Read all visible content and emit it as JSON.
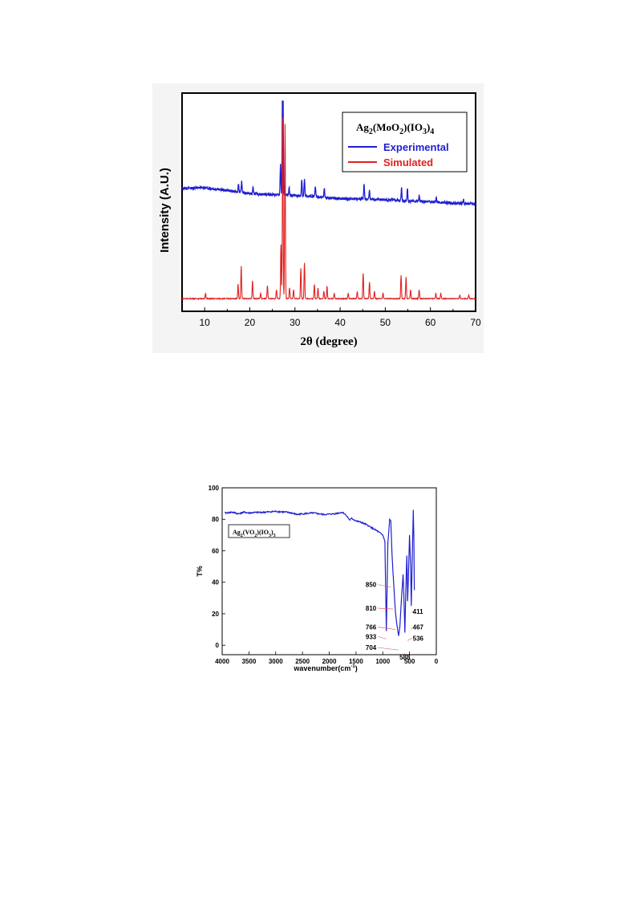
{
  "charts": [
    {
      "type": "line",
      "xlabel": "2θ (degree)",
      "ylabel": "Intensity (A.U.)",
      "x_ticks": [
        "10",
        "20",
        "30",
        "40",
        "50",
        "60",
        "70"
      ],
      "xlim": [
        5,
        70
      ],
      "legend": {
        "title": "Ag",
        "title_sub1": "2",
        "title_mid": "(MoO",
        "title_sub2": "2",
        "title_mid2": ")(IO",
        "title_sub3": "3",
        "title_end": ")",
        "title_sub4": "4",
        "placement": "top-right"
      },
      "series": [
        {
          "name": "Experimental",
          "color": "#1f1fd0",
          "baseline": [
            [
              5,
              0.585
            ],
            [
              10,
              0.588
            ],
            [
              15,
              0.575
            ],
            [
              20,
              0.56
            ],
            [
              25,
              0.555
            ],
            [
              30,
              0.55
            ],
            [
              35,
              0.545
            ],
            [
              40,
              0.535
            ],
            [
              45,
              0.535
            ],
            [
              50,
              0.53
            ],
            [
              55,
              0.525
            ],
            [
              60,
              0.52
            ],
            [
              65,
              0.515
            ],
            [
              70,
              0.51
            ]
          ],
          "peaks": [
            [
              17.5,
              0.04
            ],
            [
              18.2,
              0.05
            ],
            [
              20.7,
              0.03
            ],
            [
              26.8,
              0.15
            ],
            [
              27.3,
              1.0
            ],
            [
              28.7,
              0.04
            ],
            [
              31.5,
              0.08
            ],
            [
              32.1,
              0.08
            ],
            [
              34.5,
              0.05
            ],
            [
              36.5,
              0.04
            ],
            [
              45.3,
              0.07
            ],
            [
              46.5,
              0.04
            ],
            [
              53.6,
              0.06
            ],
            [
              54.9,
              0.06
            ],
            [
              57.5,
              0.03
            ],
            [
              61.3,
              0.02
            ],
            [
              67.3,
              0.02
            ]
          ]
        },
        {
          "name": "Simulated",
          "color": "#e02020",
          "baseline": [
            [
              5,
              0.07
            ],
            [
              70,
              0.07
            ]
          ],
          "peaks": [
            [
              10.2,
              0.03
            ],
            [
              17.4,
              0.08
            ],
            [
              18.1,
              0.18
            ],
            [
              20.6,
              0.1
            ],
            [
              22.4,
              0.03
            ],
            [
              23.9,
              0.07
            ],
            [
              25.9,
              0.05
            ],
            [
              26.9,
              0.3
            ],
            [
              27.3,
              1.0
            ],
            [
              27.8,
              0.97
            ],
            [
              28.8,
              0.06
            ],
            [
              29.7,
              0.05
            ],
            [
              31.3,
              0.17
            ],
            [
              32.1,
              0.2
            ],
            [
              34.3,
              0.08
            ],
            [
              35.1,
              0.06
            ],
            [
              36.4,
              0.04
            ],
            [
              37.1,
              0.07
            ],
            [
              38.7,
              0.03
            ],
            [
              41.8,
              0.03
            ],
            [
              43.8,
              0.04
            ],
            [
              45.1,
              0.14
            ],
            [
              46.5,
              0.09
            ],
            [
              47.6,
              0.04
            ],
            [
              49.5,
              0.03
            ],
            [
              53.5,
              0.13
            ],
            [
              54.6,
              0.12
            ],
            [
              55.6,
              0.05
            ],
            [
              57.5,
              0.05
            ],
            [
              61.2,
              0.03
            ],
            [
              62.3,
              0.03
            ],
            [
              66.5,
              0.02
            ],
            [
              68.5,
              0.02
            ]
          ]
        }
      ]
    },
    {
      "type": "line",
      "xlabel": "wavenumber(cm",
      "xlabel_sup": "-1",
      "xlabel_end": ")",
      "ylabel": "T%",
      "x_ticks": [
        "4000",
        "3500",
        "3000",
        "2500",
        "2000",
        "1500",
        "1000",
        "500",
        "0"
      ],
      "y_ticks": [
        "100",
        "80",
        "60",
        "40",
        "20",
        "0"
      ],
      "xlim": [
        4000,
        0
      ],
      "ylim": [
        -6,
        100
      ],
      "legend": {
        "title": "Ag",
        "title_sub1": "2",
        "title_mid": "(VO",
        "title_sub2": "2",
        "title_mid2": ")(IO",
        "title_sub3": "3",
        "title_end": ")",
        "title_sub4": "3",
        "placement": "top-left"
      },
      "series": [
        {
          "name": "",
          "color": "#1f1fd0",
          "points": [
            [
              3950,
              84
            ],
            [
              3800,
              84.5
            ],
            [
              3700,
              83.5
            ],
            [
              3600,
              84.5
            ],
            [
              3500,
              84
            ],
            [
              3400,
              84.3
            ],
            [
              3200,
              84.5
            ],
            [
              3000,
              85
            ],
            [
              2800,
              84.5
            ],
            [
              2700,
              84
            ],
            [
              2600,
              83
            ],
            [
              2500,
              83.5
            ],
            [
              2300,
              84
            ],
            [
              2100,
              83
            ],
            [
              1900,
              83.5
            ],
            [
              1750,
              84.5
            ],
            [
              1680,
              82.5
            ],
            [
              1620,
              79.5
            ],
            [
              1580,
              80.5
            ],
            [
              1500,
              79
            ],
            [
              1400,
              78
            ],
            [
              1300,
              76.5
            ],
            [
              1200,
              74.5
            ],
            [
              1100,
              72.5
            ],
            [
              1000,
              70
            ],
            [
              960,
              66
            ],
            [
              933,
              9
            ],
            [
              905,
              65
            ],
            [
              870,
              80
            ],
            [
              850,
              79
            ],
            [
              830,
              60
            ],
            [
              810,
              47
            ],
            [
              790,
              36
            ],
            [
              766,
              22
            ],
            [
              740,
              14
            ],
            [
              704,
              6
            ],
            [
              680,
              12
            ],
            [
              650,
              30
            ],
            [
              620,
              45
            ],
            [
              600,
              25
            ],
            [
              588,
              8
            ],
            [
              570,
              35
            ],
            [
              550,
              57
            ],
            [
              536,
              28
            ],
            [
              520,
              45
            ],
            [
              500,
              70
            ],
            [
              480,
              50
            ],
            [
              467,
              25
            ],
            [
              450,
              55
            ],
            [
              430,
              86
            ],
            [
              420,
              70
            ],
            [
              411,
              35
            ]
          ]
        }
      ],
      "annotations": [
        {
          "label": "850",
          "x": 850,
          "y": 37
        },
        {
          "label": "810",
          "x": 810,
          "y": 23
        },
        {
          "label": "766",
          "x": 766,
          "y": 10
        },
        {
          "label": "933",
          "x": 933,
          "y": 4
        },
        {
          "label": "704",
          "x": 704,
          "y": -3
        },
        {
          "label": "588",
          "x": 588,
          "y": -6
        },
        {
          "label": "536",
          "x": 536,
          "y": 3
        },
        {
          "label": "467",
          "x": 467,
          "y": 10
        },
        {
          "label": "411",
          "x": 411,
          "y": 20
        }
      ]
    }
  ]
}
